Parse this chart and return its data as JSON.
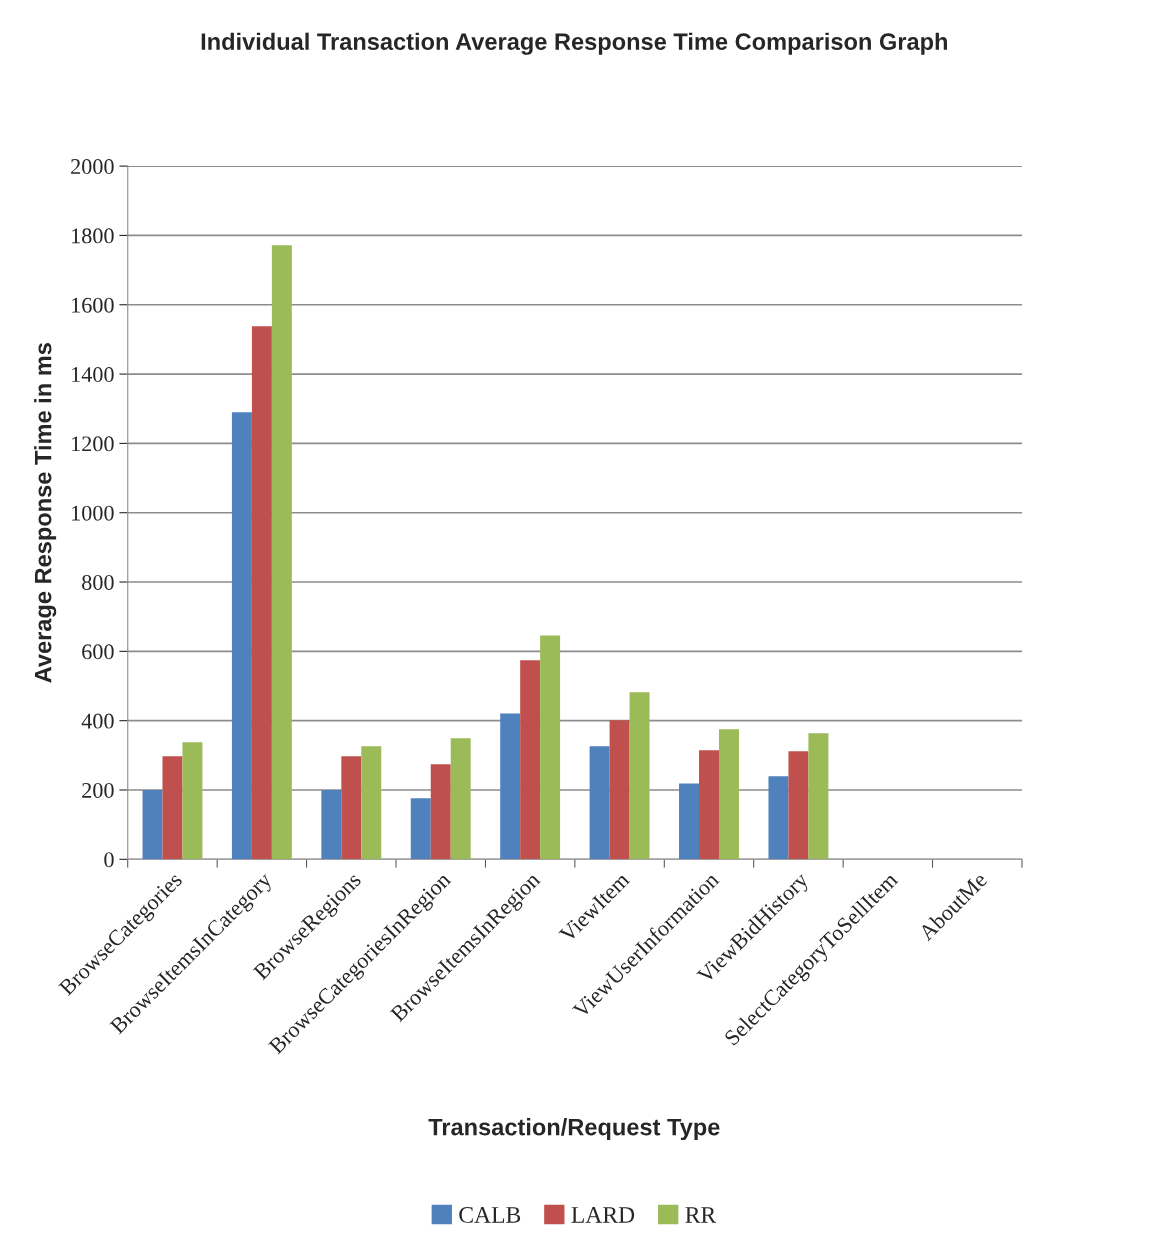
{
  "chart_data": {
    "type": "bar",
    "title": "Individual Transaction Average Response Time Comparison Graph",
    "xlabel": "Transaction/Request Type",
    "ylabel": "Average Response Time in ms",
    "categories": [
      "BrowseCategories",
      "BrowseItemsInCategory",
      "BrowseRegions",
      "BrowseCategoriesInRegion",
      "BrowseItemsInRegion",
      "ViewItem",
      "ViewUserInformation",
      "ViewBidHistory",
      "SelectCategoryToSellItem",
      "AboutMe"
    ],
    "series": [
      {
        "name": "CALB",
        "color": "#4f81bd",
        "values": [
          200,
          1290,
          200,
          176,
          421,
          326,
          219,
          240,
          0,
          0
        ]
      },
      {
        "name": "LARD",
        "color": "#c0504d",
        "values": [
          297,
          1538,
          297,
          274,
          574,
          401,
          315,
          312,
          0,
          0
        ]
      },
      {
        "name": "RR",
        "color": "#9bbb59",
        "values": [
          338,
          1772,
          326,
          349,
          646,
          482,
          375,
          364,
          0,
          0
        ]
      }
    ],
    "ylim": [
      0,
      2000
    ],
    "yticks": [
      0,
      200,
      400,
      600,
      800,
      1000,
      1200,
      1400,
      1600,
      1800,
      2000
    ],
    "grid": "y",
    "legend": "bottom"
  }
}
